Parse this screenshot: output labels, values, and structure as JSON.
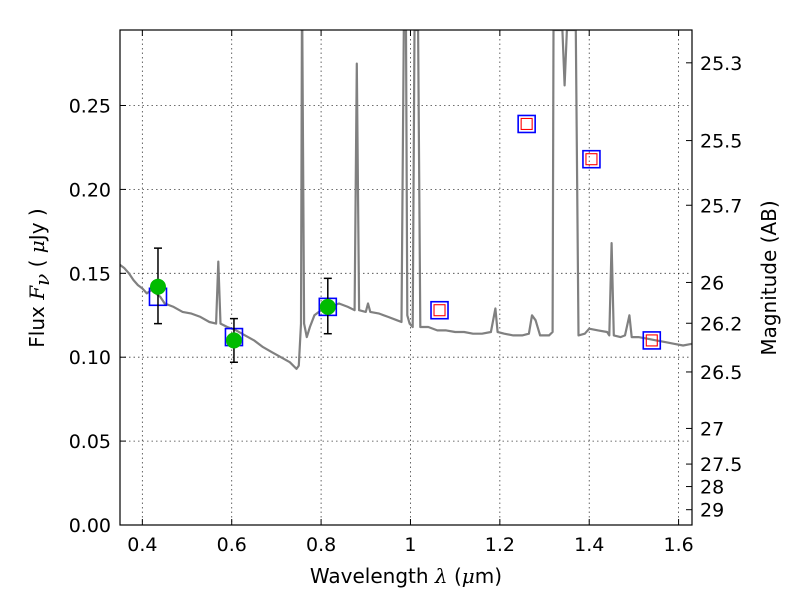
{
  "chart_data": {
    "type": "line",
    "xlabel_parts": [
      "Wavelength",
      "λ",
      "(",
      "μ",
      "m)"
    ],
    "ylabel_parts": [
      "Flux",
      "F",
      "ν",
      "(",
      "μ",
      "Jy",
      ")"
    ],
    "y2label": "Magnitude (AB)",
    "xlim": [
      0.35,
      1.63
    ],
    "ylim": [
      0.0,
      0.295
    ],
    "grid": true,
    "x_ticks": [
      {
        "v": 0.4,
        "label": "0.4"
      },
      {
        "v": 0.6,
        "label": "0.6"
      },
      {
        "v": 0.8,
        "label": "0.8"
      },
      {
        "v": 1.0,
        "label": "1"
      },
      {
        "v": 1.2,
        "label": "1.2"
      },
      {
        "v": 1.4,
        "label": "1.4"
      },
      {
        "v": 1.6,
        "label": "1.6"
      }
    ],
    "y_ticks": [
      {
        "v": 0.0,
        "label": "0.00"
      },
      {
        "v": 0.05,
        "label": "0.05"
      },
      {
        "v": 0.1,
        "label": "0.10"
      },
      {
        "v": 0.15,
        "label": "0.15"
      },
      {
        "v": 0.2,
        "label": "0.20"
      },
      {
        "v": 0.25,
        "label": "0.25"
      }
    ],
    "y2_ticks": [
      {
        "mag": 25.3,
        "label": "25.3"
      },
      {
        "mag": 25.5,
        "label": "25.5"
      },
      {
        "mag": 25.7,
        "label": "25.7"
      },
      {
        "mag": 26.0,
        "label": "26"
      },
      {
        "mag": 26.2,
        "label": "26.2"
      },
      {
        "mag": 26.5,
        "label": "26.5"
      },
      {
        "mag": 27.0,
        "label": "27"
      },
      {
        "mag": 27.5,
        "label": "27.5"
      },
      {
        "mag": 28.0,
        "label": "28"
      },
      {
        "mag": 29.0,
        "label": "29"
      }
    ],
    "series": [
      {
        "kind": "line",
        "color": "#808080",
        "points": [
          [
            0.35,
            0.155
          ],
          [
            0.36,
            0.153
          ],
          [
            0.37,
            0.15
          ],
          [
            0.38,
            0.146
          ],
          [
            0.39,
            0.143
          ],
          [
            0.4,
            0.141
          ],
          [
            0.41,
            0.138
          ],
          [
            0.42,
            0.14
          ],
          [
            0.43,
            0.138
          ],
          [
            0.44,
            0.136
          ],
          [
            0.45,
            0.132
          ],
          [
            0.47,
            0.13
          ],
          [
            0.49,
            0.127
          ],
          [
            0.51,
            0.126
          ],
          [
            0.53,
            0.124
          ],
          [
            0.55,
            0.121
          ],
          [
            0.565,
            0.12
          ],
          [
            0.57,
            0.157
          ],
          [
            0.575,
            0.12
          ],
          [
            0.59,
            0.118
          ],
          [
            0.61,
            0.116
          ],
          [
            0.63,
            0.113
          ],
          [
            0.65,
            0.11
          ],
          [
            0.67,
            0.106
          ],
          [
            0.69,
            0.103
          ],
          [
            0.71,
            0.1
          ],
          [
            0.73,
            0.097
          ],
          [
            0.745,
            0.093
          ],
          [
            0.75,
            0.095
          ],
          [
            0.755,
            0.12
          ],
          [
            0.757,
            0.295
          ],
          [
            0.758,
            0.295
          ],
          [
            0.762,
            0.12
          ],
          [
            0.768,
            0.112
          ],
          [
            0.775,
            0.118
          ],
          [
            0.785,
            0.125
          ],
          [
            0.8,
            0.128
          ],
          [
            0.82,
            0.13
          ],
          [
            0.84,
            0.132
          ],
          [
            0.86,
            0.13
          ],
          [
            0.875,
            0.128
          ],
          [
            0.88,
            0.275
          ],
          [
            0.885,
            0.128
          ],
          [
            0.9,
            0.127
          ],
          [
            0.905,
            0.132
          ],
          [
            0.91,
            0.127
          ],
          [
            0.93,
            0.126
          ],
          [
            0.95,
            0.124
          ],
          [
            0.97,
            0.122
          ],
          [
            0.98,
            0.121
          ],
          [
            0.985,
            0.295
          ],
          [
            0.99,
            0.295
          ],
          [
            0.993,
            0.125
          ],
          [
            0.998,
            0.12
          ],
          [
            1.005,
            0.118
          ],
          [
            1.009,
            0.295
          ],
          [
            1.013,
            0.295
          ],
          [
            1.017,
            0.295
          ],
          [
            1.022,
            0.118
          ],
          [
            1.04,
            0.118
          ],
          [
            1.06,
            0.116
          ],
          [
            1.08,
            0.116
          ],
          [
            1.1,
            0.115
          ],
          [
            1.12,
            0.115
          ],
          [
            1.14,
            0.114
          ],
          [
            1.16,
            0.114
          ],
          [
            1.18,
            0.115
          ],
          [
            1.19,
            0.129
          ],
          [
            1.195,
            0.115
          ],
          [
            1.21,
            0.114
          ],
          [
            1.23,
            0.113
          ],
          [
            1.25,
            0.113
          ],
          [
            1.265,
            0.114
          ],
          [
            1.272,
            0.125
          ],
          [
            1.28,
            0.122
          ],
          [
            1.29,
            0.113
          ],
          [
            1.31,
            0.113
          ],
          [
            1.318,
            0.115
          ],
          [
            1.32,
            0.295
          ],
          [
            1.34,
            0.295
          ],
          [
            1.345,
            0.262
          ],
          [
            1.35,
            0.295
          ],
          [
            1.37,
            0.295
          ],
          [
            1.376,
            0.113
          ],
          [
            1.39,
            0.114
          ],
          [
            1.4,
            0.117
          ],
          [
            1.42,
            0.116
          ],
          [
            1.44,
            0.115
          ],
          [
            1.445,
            0.113
          ],
          [
            1.45,
            0.168
          ],
          [
            1.455,
            0.113
          ],
          [
            1.47,
            0.112
          ],
          [
            1.48,
            0.113
          ],
          [
            1.49,
            0.125
          ],
          [
            1.495,
            0.112
          ],
          [
            1.51,
            0.112
          ],
          [
            1.53,
            0.111
          ],
          [
            1.55,
            0.11
          ],
          [
            1.57,
            0.109
          ],
          [
            1.59,
            0.108
          ],
          [
            1.61,
            0.107
          ],
          [
            1.63,
            0.108
          ]
        ]
      },
      {
        "kind": "model_photometry_box",
        "edge": "#0000ff",
        "points": [
          [
            0.435,
            0.136
          ],
          [
            0.605,
            0.112
          ],
          [
            0.815,
            0.13
          ],
          [
            1.065,
            0.128
          ],
          [
            1.26,
            0.239
          ],
          [
            1.405,
            0.218
          ],
          [
            1.54,
            0.11
          ]
        ]
      },
      {
        "kind": "upper_limit_box",
        "edge": "#ff0000",
        "points": [
          [
            1.065,
            0.128
          ],
          [
            1.26,
            0.239
          ],
          [
            1.405,
            0.218
          ],
          [
            1.54,
            0.11
          ]
        ]
      },
      {
        "kind": "observed_points",
        "color": "#00bb00",
        "points": [
          [
            0.435,
            0.142,
            0.12,
            0.165
          ],
          [
            0.605,
            0.11,
            0.097,
            0.123
          ],
          [
            0.815,
            0.13,
            0.114,
            0.147
          ]
        ]
      }
    ]
  }
}
